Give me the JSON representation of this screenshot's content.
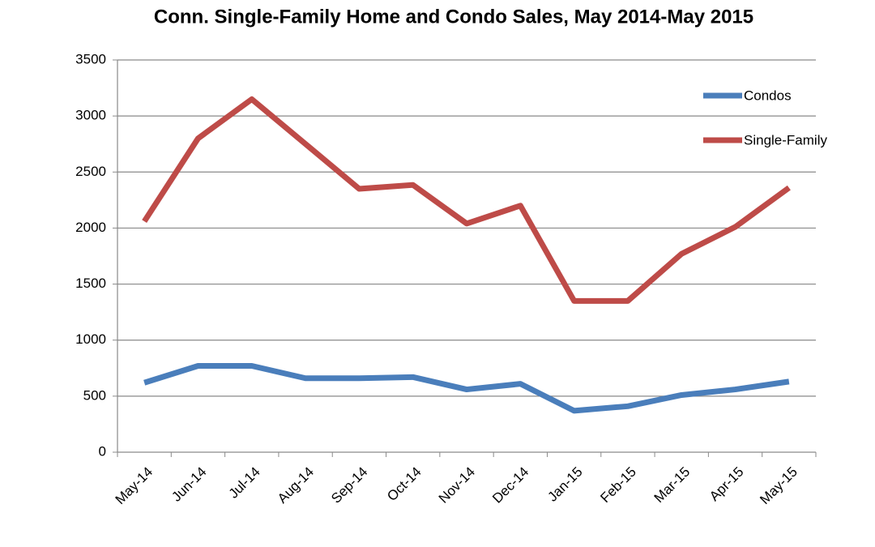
{
  "chart_data": {
    "type": "line",
    "title": "Conn. Single-Family Home and Condo Sales, May 2014-May 2015",
    "categories": [
      "May-14",
      "Jun-14",
      "Jul-14",
      "Aug-14",
      "Sep-14",
      "Oct-14",
      "Nov-14",
      "Dec-14",
      "Jan-15",
      "Feb-15",
      "Mar-15",
      "Apr-15",
      "May-15"
    ],
    "series": [
      {
        "name": "Condos",
        "color": "#4a7ebb",
        "values": [
          620,
          770,
          770,
          660,
          660,
          670,
          560,
          610,
          370,
          410,
          510,
          560,
          630
        ]
      },
      {
        "name": "Single-Family",
        "color": "#be4b48",
        "values": [
          2060,
          2800,
          3150,
          2750,
          2350,
          2385,
          2040,
          2200,
          1350,
          1350,
          1770,
          2010,
          2360
        ]
      }
    ],
    "ylim": [
      0,
      3500
    ],
    "yticks": [
      0,
      500,
      1000,
      1500,
      2000,
      2500,
      3000,
      3500
    ],
    "grid": true,
    "legend": "right"
  }
}
